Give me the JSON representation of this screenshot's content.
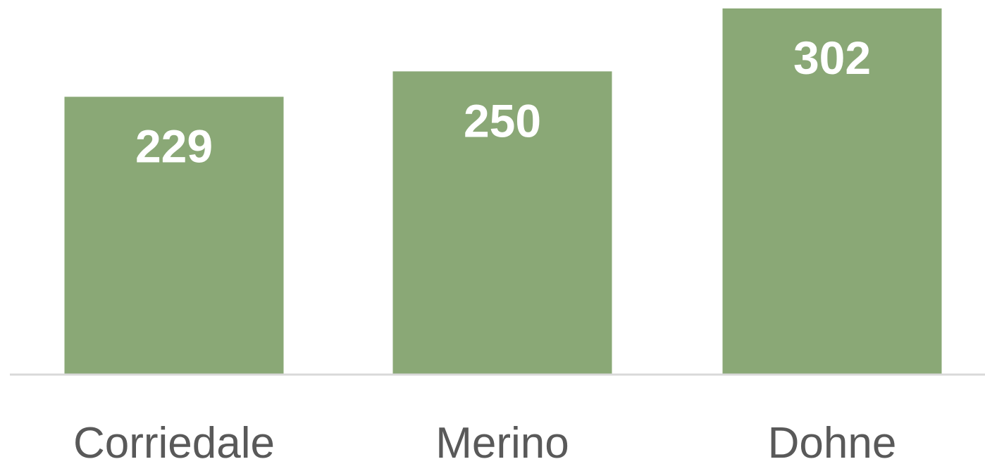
{
  "chart_data": {
    "type": "bar",
    "categories": [
      "Corriedale",
      "Merino",
      "Dohne"
    ],
    "values": [
      229,
      250,
      302
    ],
    "value_labels": [
      "229",
      "250",
      "302"
    ],
    "title": "",
    "xlabel": "",
    "ylabel": "",
    "ylim": [
      0,
      302
    ],
    "grid": false,
    "legend": "none",
    "data_labels": "inside-end",
    "colors": {
      "bar": "#8aa876",
      "axis": "#d9d9d9",
      "data_label": "#ffffff",
      "category_label": "#595959"
    }
  }
}
